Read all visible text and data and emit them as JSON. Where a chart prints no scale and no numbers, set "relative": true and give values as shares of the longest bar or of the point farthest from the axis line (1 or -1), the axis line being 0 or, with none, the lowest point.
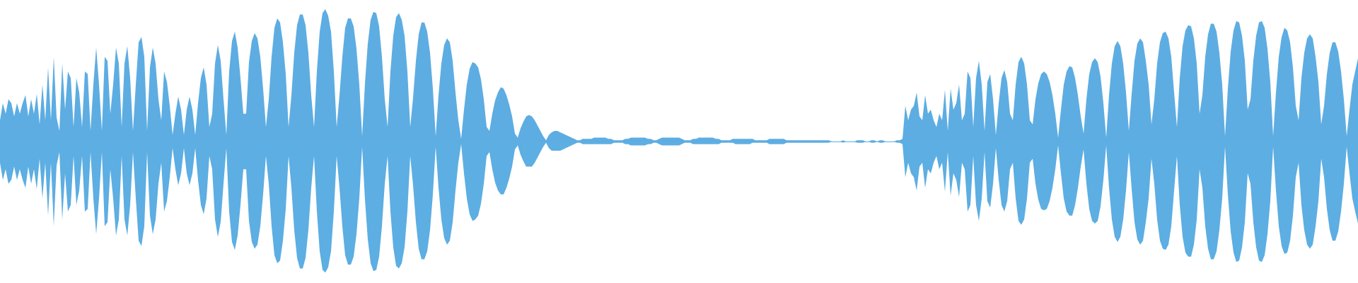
{
  "chart_data": {
    "type": "area",
    "relative": true,
    "ref_lines": [
      {
        "axis": "y",
        "value": 0,
        "color": "#5dade2",
        "line_style": "solid"
      }
    ],
    "categories": [
      null,
      null,
      null,
      null,
      null,
      null,
      null,
      null,
      null,
      null,
      null,
      null,
      null,
      null,
      null,
      null,
      null,
      null,
      null,
      null,
      null,
      null,
      null,
      null,
      null,
      null,
      null,
      null,
      null,
      null,
      null,
      null,
      null,
      null,
      null,
      null,
      null,
      null,
      null,
      null,
      null,
      null,
      null,
      null,
      null,
      null,
      null,
      null,
      null,
      null,
      null,
      null,
      null,
      null,
      null,
      null,
      null,
      null,
      null,
      null,
      null,
      null,
      null,
      null,
      null,
      null,
      null,
      null,
      null,
      null,
      null,
      null,
      null,
      null,
      null,
      null,
      null,
      null,
      null,
      null,
      null,
      null,
      null,
      null,
      null,
      null,
      null,
      null,
      null,
      null,
      null,
      null,
      null,
      null,
      null,
      null,
      null,
      null,
      null,
      null,
      null,
      null,
      null,
      null,
      null,
      null,
      null,
      null,
      null,
      null,
      null,
      null,
      null,
      null,
      null,
      null,
      null,
      null,
      null,
      null,
      null,
      null,
      null,
      null,
      null,
      null,
      null,
      null,
      null,
      null,
      null,
      null,
      null,
      null,
      null,
      null,
      null,
      null,
      null,
      null,
      null,
      null,
      null,
      null,
      null,
      null,
      null,
      null,
      null,
      null,
      null,
      null,
      null,
      null,
      null,
      null,
      null,
      null,
      null,
      null,
      null,
      null,
      null,
      null,
      null,
      null,
      null,
      null,
      null,
      null,
      null,
      null,
      null,
      null,
      null,
      null,
      null,
      null,
      null,
      null,
      null,
      null,
      null,
      null,
      null,
      null,
      null,
      null,
      null,
      null,
      null,
      null,
      null,
      null,
      null,
      null,
      null,
      null,
      null,
      null,
      null,
      null,
      null,
      null,
      null,
      null,
      null,
      null,
      null,
      null,
      null,
      null,
      null,
      null,
      null,
      null,
      null,
      null,
      null,
      null,
      null,
      null,
      null,
      null,
      null,
      null,
      null,
      null,
      null,
      null,
      null,
      null,
      null,
      null,
      null,
      null,
      null,
      null,
      null,
      null,
      null,
      null,
      null,
      null,
      null,
      null,
      null,
      null,
      null,
      null,
      null,
      null,
      null,
      null,
      null,
      null,
      null,
      null,
      null,
      null,
      null,
      null,
      null,
      null,
      null,
      null,
      null,
      null,
      null,
      null,
      null,
      null,
      null,
      null,
      null,
      null,
      null,
      null,
      null,
      null,
      null,
      null,
      null,
      null,
      null,
      null,
      null,
      null,
      null,
      null,
      null,
      null,
      null,
      null,
      null,
      null,
      null,
      null,
      null,
      null,
      null,
      null,
      null,
      null,
      null,
      null,
      null,
      null,
      null,
      null,
      null,
      null,
      null,
      null,
      null,
      null,
      null,
      null,
      null,
      null,
      null,
      null,
      null,
      null,
      null,
      null,
      null,
      null,
      null,
      null,
      null,
      null,
      null,
      null,
      null,
      null,
      null,
      null,
      null,
      null,
      null,
      null,
      null,
      null,
      null,
      null,
      null,
      null,
      null,
      null,
      null,
      null,
      null,
      null,
      null,
      null,
      null,
      null,
      null,
      null,
      null,
      null,
      null,
      null,
      null,
      null,
      null,
      null,
      null,
      null,
      null,
      null,
      null,
      null,
      null,
      null,
      null,
      null,
      null,
      null,
      null,
      null,
      null,
      null,
      null,
      null,
      null,
      null,
      null,
      null,
      null,
      null,
      null,
      null,
      null,
      null,
      null,
      null,
      null,
      null,
      null,
      null,
      null,
      null,
      null,
      null,
      null,
      null,
      null,
      null,
      null,
      null,
      null,
      null,
      null,
      null,
      null,
      null,
      null,
      null,
      null,
      null,
      null,
      null,
      null,
      null,
      null,
      null,
      null,
      null,
      null,
      null,
      null,
      null,
      null,
      null,
      null,
      null,
      null,
      null,
      null,
      null,
      null,
      null,
      null,
      null,
      null,
      null,
      null,
      null,
      null,
      null,
      null,
      null,
      null,
      null,
      null,
      null,
      null,
      null,
      null,
      null,
      null,
      null,
      null,
      null,
      null,
      null,
      null,
      null,
      null,
      null,
      null,
      null,
      null,
      null,
      null,
      null,
      null,
      null,
      null
    ],
    "series": [
      {
        "color": "#5dade2",
        "values": [
          0.16,
          0.29,
          0.21,
          0.32,
          0.29,
          0.19,
          0.29,
          0.21,
          0.29,
          0.35,
          0.19,
          0.32,
          0.21,
          0.36,
          0.13,
          0.43,
          0.16,
          0.56,
          0.16,
          0.64,
          0.18,
          0.08,
          0.59,
          0.24,
          0.53,
          0.48,
          0.11,
          0.48,
          0.37,
          0.11,
          0.53,
          0.51,
          0.08,
          0.43,
          0.71,
          0.43,
          0.08,
          0.64,
          0.61,
          0.21,
          0.43,
          0.71,
          0.59,
          0.11,
          0.59,
          0.72,
          0.48,
          0.08,
          0.43,
          0.75,
          0.79,
          0.64,
          0.08,
          0.56,
          0.71,
          0.59,
          0.32,
          0.16,
          0.53,
          0.45,
          0.27,
          0.05,
          0.21,
          0.34,
          0.24,
          0.05,
          0.24,
          0.34,
          0.24,
          0.05,
          0.29,
          0.48,
          0.56,
          0.43,
          0.11,
          0.21,
          0.59,
          0.73,
          0.61,
          0.32,
          0.05,
          0.53,
          0.76,
          0.83,
          0.71,
          0.48,
          0.21,
          0.21,
          0.6,
          0.76,
          0.82,
          0.78,
          0.64,
          0.4,
          0.11,
          0.32,
          0.64,
          0.86,
          0.93,
          0.9,
          0.75,
          0.51,
          0.11,
          0.35,
          0.67,
          0.88,
          0.96,
          0.96,
          0.88,
          0.67,
          0.35,
          0.11,
          0.53,
          0.83,
          0.97,
          1,
          0.95,
          0.83,
          0.53,
          0.11,
          0.35,
          0.64,
          0.86,
          0.93,
          0.93,
          0.87,
          0.7,
          0.43,
          0.04,
          0.44,
          0.74,
          0.92,
          0.98,
          0.97,
          0.87,
          0.64,
          0.32,
          0.11,
          0.53,
          0.8,
          0.94,
          0.97,
          0.92,
          0.8,
          0.53,
          0.11,
          0.33,
          0.61,
          0.81,
          0.9,
          0.9,
          0.83,
          0.67,
          0.4,
          0.04,
          0.35,
          0.59,
          0.73,
          0.78,
          0.75,
          0.61,
          0.37,
          0.16,
          0.02,
          0.24,
          0.43,
          0.55,
          0.6,
          0.59,
          0.56,
          0.47,
          0.32,
          0.11,
          0.08,
          0.21,
          0.31,
          0.37,
          0.41,
          0.4,
          0.35,
          0.28,
          0.19,
          0.06,
          0.03,
          0.1,
          0.15,
          0.19,
          0.2,
          0.19,
          0.16,
          0.12,
          0.08,
          0.04,
          0.01,
          0.05,
          0.07,
          0.08,
          0.08,
          0.07,
          0.06,
          0.05,
          0.04,
          0.03,
          0.02,
          0.01,
          0.01,
          0.02,
          0.02,
          0.02,
          0.02,
          0.03,
          0.03,
          0.03,
          0.03,
          0.03,
          0.02,
          0.02,
          0.01,
          0.01,
          0.01,
          0.01,
          0.02,
          0.02,
          0.03,
          0.03,
          0.03,
          0.03,
          0.03,
          0.03,
          0.02,
          0.02,
          0.01,
          0.01,
          0.02,
          0.03,
          0.03,
          0.03,
          0.03,
          0.03,
          0.03,
          0.03,
          0.02,
          0.01,
          0.01,
          0.01,
          0.02,
          0.02,
          0.03,
          0.03,
          0.03,
          0.03,
          0.03,
          0.03,
          0.02,
          0.02,
          0.01,
          0.01,
          0.01,
          0.01,
          0.02,
          0.02,
          0.02,
          0.02,
          0.02,
          0.02,
          0.02,
          0.02,
          0.01,
          0.01,
          0.01,
          0.01,
          0.01,
          0.02,
          0.02,
          0.02,
          0.02,
          0.02,
          0.02,
          0.01,
          0.01,
          0.01,
          0.01,
          0.01,
          0.01,
          0.01,
          0.01,
          0.01,
          0.01,
          0.01,
          0.01,
          0.01,
          0.01,
          0.01,
          0.01,
          0,
          0,
          0,
          0,
          0.01,
          0,
          0,
          0,
          0,
          0.01,
          0.01,
          0.01,
          0,
          0,
          0.01,
          0.01,
          0,
          0.01,
          0.01,
          0,
          0,
          0,
          0,
          0.01,
          0.01,
          0.02,
          0.27,
          0.16,
          0.24,
          0.27,
          0.37,
          0.19,
          0.16,
          0.35,
          0.21,
          0.24,
          0.16,
          0.11,
          0.21,
          0.16,
          0.39,
          0.08,
          0.4,
          0.24,
          0.29,
          0.43,
          0.16,
          0.21,
          0.53,
          0.48,
          0.11,
          0.48,
          0.61,
          0.43,
          0.08,
          0.45,
          0.51,
          0.32,
          0.05,
          0.29,
          0.48,
          0.54,
          0.45,
          0.21,
          0.16,
          0.43,
          0.6,
          0.64,
          0.59,
          0.43,
          0.16,
          0.13,
          0.32,
          0.44,
          0.51,
          0.53,
          0.51,
          0.45,
          0.35,
          0.21,
          0.03,
          0.24,
          0.43,
          0.53,
          0.57,
          0.56,
          0.48,
          0.35,
          0.19,
          0.06,
          0.32,
          0.51,
          0.6,
          0.63,
          0.6,
          0.49,
          0.29,
          0.03,
          0.35,
          0.59,
          0.72,
          0.76,
          0.72,
          0.59,
          0.37,
          0.08,
          0.36,
          0.61,
          0.74,
          0.78,
          0.75,
          0.61,
          0.43,
          0.13,
          0.32,
          0.59,
          0.75,
          0.82,
          0.83,
          0.78,
          0.64,
          0.37,
          0.11,
          0.48,
          0.72,
          0.84,
          0.88,
          0.87,
          0.78,
          0.59,
          0.21,
          0.35,
          0.64,
          0.81,
          0.89,
          0.89,
          0.83,
          0.67,
          0.43,
          0.04,
          0.4,
          0.68,
          0.84,
          0.91,
          0.9,
          0.8,
          0.61,
          0.24,
          0.32,
          0.61,
          0.8,
          0.9,
          0.91,
          0.86,
          0.7,
          0.45,
          0.04,
          0.37,
          0.64,
          0.79,
          0.86,
          0.84,
          0.75,
          0.56,
          0.27,
          0.16,
          0.48,
          0.67,
          0.78,
          0.81,
          0.78,
          0.64,
          0.45,
          0.13,
          0.27,
          0.51,
          0.67,
          0.75,
          0.75,
          0.68,
          0.53,
          0.32,
          0.04,
          0.24,
          0.43,
          0.53,
          0.63
        ]
      },
      {
        "color": "#5daee2",
        "values": [
          -0.16,
          -0.29,
          -0.21,
          -0.32,
          -0.29,
          -0.19,
          -0.29,
          -0.21,
          -0.29,
          -0.35,
          -0.19,
          -0.32,
          -0.21,
          -0.36,
          -0.13,
          -0.43,
          -0.16,
          -0.56,
          -0.16,
          -0.64,
          -0.18,
          -0.08,
          -0.59,
          -0.24,
          -0.53,
          -0.48,
          -0.11,
          -0.48,
          -0.37,
          -0.11,
          -0.53,
          -0.51,
          -0.08,
          -0.43,
          -0.7,
          -0.43,
          -0.08,
          -0.64,
          -0.61,
          -0.21,
          -0.43,
          -0.71,
          -0.59,
          -0.11,
          -0.59,
          -0.71,
          -0.48,
          -0.08,
          -0.43,
          -0.75,
          -0.79,
          -0.64,
          -0.08,
          -0.56,
          -0.7,
          -0.59,
          -0.32,
          -0.16,
          -0.53,
          -0.45,
          -0.27,
          -0.05,
          -0.21,
          -0.33,
          -0.24,
          -0.05,
          -0.24,
          -0.33,
          -0.24,
          -0.05,
          -0.29,
          -0.48,
          -0.55,
          -0.43,
          -0.11,
          -0.21,
          -0.59,
          -0.72,
          -0.61,
          -0.32,
          -0.05,
          -0.53,
          -0.76,
          -0.82,
          -0.71,
          -0.48,
          -0.21,
          -0.21,
          -0.6,
          -0.76,
          -0.81,
          -0.78,
          -0.64,
          -0.4,
          -0.11,
          -0.32,
          -0.64,
          -0.86,
          -0.92,
          -0.9,
          -0.75,
          -0.51,
          -0.11,
          -0.35,
          -0.67,
          -0.88,
          -0.96,
          -0.96,
          -0.88,
          -0.67,
          -0.35,
          -0.11,
          -0.53,
          -0.83,
          -0.97,
          -0.99,
          -0.95,
          -0.83,
          -0.53,
          -0.11,
          -0.35,
          -0.64,
          -0.86,
          -0.93,
          -0.93,
          -0.87,
          -0.7,
          -0.43,
          -0.04,
          -0.44,
          -0.74,
          -0.92,
          -0.98,
          -0.97,
          -0.87,
          -0.64,
          -0.32,
          -0.11,
          -0.53,
          -0.8,
          -0.94,
          -0.96,
          -0.92,
          -0.8,
          -0.53,
          -0.11,
          -0.33,
          -0.61,
          -0.81,
          -0.89,
          -0.89,
          -0.83,
          -0.67,
          -0.4,
          -0.04,
          -0.35,
          -0.59,
          -0.73,
          -0.78,
          -0.75,
          -0.61,
          -0.37,
          -0.16,
          -0.02,
          -0.24,
          -0.43,
          -0.55,
          -0.6,
          -0.59,
          -0.56,
          -0.47,
          -0.32,
          -0.11,
          -0.08,
          -0.21,
          -0.31,
          -0.37,
          -0.4,
          -0.4,
          -0.35,
          -0.28,
          -0.19,
          -0.06,
          -0.03,
          -0.1,
          -0.15,
          -0.19,
          -0.19,
          -0.19,
          -0.16,
          -0.12,
          -0.08,
          -0.04,
          -0.01,
          -0.05,
          -0.07,
          -0.07,
          -0.07,
          -0.07,
          -0.06,
          -0.05,
          -0.04,
          -0.03,
          -0.02,
          -0.01,
          -0.01,
          -0.02,
          -0.02,
          -0.02,
          -0.02,
          -0.02,
          -0.02,
          -0.02,
          -0.02,
          -0.02,
          -0.02,
          -0.02,
          -0.01,
          -0.01,
          -0.01,
          -0.01,
          -0.02,
          -0.02,
          -0.03,
          -0.03,
          -0.03,
          -0.03,
          -0.03,
          -0.03,
          -0.02,
          -0.02,
          -0.01,
          -0.01,
          -0.02,
          -0.03,
          -0.03,
          -0.03,
          -0.03,
          -0.03,
          -0.03,
          -0.03,
          -0.02,
          -0.01,
          -0.01,
          -0.01,
          -0.02,
          -0.02,
          -0.02,
          -0.02,
          -0.02,
          -0.02,
          -0.02,
          -0.02,
          -0.02,
          -0.02,
          -0.01,
          -0.01,
          -0.01,
          -0.01,
          -0.01,
          -0.02,
          -0.02,
          -0.02,
          -0.02,
          -0.02,
          -0.02,
          -0.01,
          -0.01,
          -0.01,
          -0.01,
          -0.01,
          -0.01,
          -0.02,
          -0.02,
          -0.02,
          -0.02,
          -0.02,
          -0.02,
          -0.01,
          -0.01,
          -0.01,
          -0.01,
          -0.01,
          -0.01,
          -0.01,
          -0.01,
          -0.01,
          -0.01,
          -0.01,
          -0.01,
          -0.01,
          -0.01,
          -0.01,
          -0.01,
          0,
          0,
          0,
          0,
          -0.01,
          0,
          0,
          0,
          0,
          -0.01,
          -0.01,
          -0.01,
          0,
          0,
          -0.01,
          -0.01,
          0,
          -0.01,
          -0.01,
          0,
          0,
          0,
          0,
          -0.01,
          -0.01,
          -0.02,
          -0.27,
          -0.16,
          -0.24,
          -0.27,
          -0.37,
          -0.19,
          -0.16,
          -0.35,
          -0.21,
          -0.24,
          -0.16,
          -0.11,
          -0.21,
          -0.16,
          -0.38,
          -0.08,
          -0.41,
          -0.24,
          -0.29,
          -0.42,
          -0.16,
          -0.21,
          -0.53,
          -0.48,
          -0.11,
          -0.48,
          -0.6,
          -0.43,
          -0.08,
          -0.45,
          -0.5,
          -0.32,
          -0.05,
          -0.29,
          -0.48,
          -0.53,
          -0.45,
          -0.21,
          -0.16,
          -0.43,
          -0.6,
          -0.63,
          -0.59,
          -0.43,
          -0.16,
          -0.13,
          -0.32,
          -0.44,
          -0.51,
          -0.52,
          -0.51,
          -0.45,
          -0.35,
          -0.21,
          -0.03,
          -0.24,
          -0.43,
          -0.53,
          -0.56,
          -0.56,
          -0.48,
          -0.35,
          -0.19,
          -0.06,
          -0.32,
          -0.51,
          -0.6,
          -0.62,
          -0.6,
          -0.49,
          -0.29,
          -0.03,
          -0.35,
          -0.59,
          -0.72,
          -0.76,
          -0.72,
          -0.59,
          -0.37,
          -0.08,
          -0.36,
          -0.61,
          -0.74,
          -0.78,
          -0.75,
          -0.61,
          -0.43,
          -0.13,
          -0.32,
          -0.59,
          -0.75,
          -0.81,
          -0.82,
          -0.78,
          -0.64,
          -0.37,
          -0.11,
          -0.48,
          -0.72,
          -0.84,
          -0.87,
          -0.87,
          -0.78,
          -0.59,
          -0.21,
          -0.35,
          -0.64,
          -0.81,
          -0.89,
          -0.89,
          -0.83,
          -0.67,
          -0.43,
          -0.04,
          -0.4,
          -0.68,
          -0.84,
          -0.91,
          -0.9,
          -0.8,
          -0.61,
          -0.24,
          -0.32,
          -0.61,
          -0.8,
          -0.9,
          -0.91,
          -0.86,
          -0.7,
          -0.45,
          -0.04,
          -0.37,
          -0.64,
          -0.79,
          -0.85,
          -0.84,
          -0.75,
          -0.56,
          -0.27,
          -0.16,
          -0.48,
          -0.67,
          -0.78,
          -0.81,
          -0.78,
          -0.64,
          -0.45,
          -0.13,
          -0.27,
          -0.51,
          -0.67,
          -0.75,
          -0.75,
          -0.68,
          -0.53,
          -0.32,
          -0.04,
          -0.24,
          -0.43,
          -0.53,
          -0.62
        ]
      }
    ]
  }
}
